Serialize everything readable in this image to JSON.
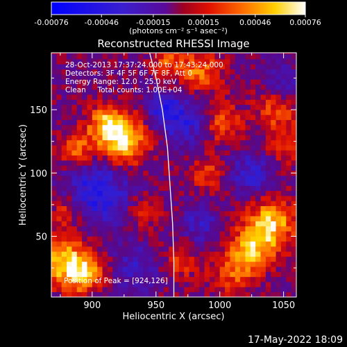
{
  "colorbar": {
    "tick_labels": [
      "-0.00076",
      "-0.00046",
      "-0.00015",
      "0.00015",
      "0.00046",
      "0.00076"
    ],
    "tick_values": [
      -0.00076,
      -0.00046,
      -0.00015,
      0.00015,
      0.00046,
      0.00076
    ],
    "range": [
      -0.00076,
      0.00076
    ],
    "unit_label": "(photons cm⁻² s⁻¹ asec⁻²)",
    "colormap": "blue-purple-red-yellow-white"
  },
  "annotations": [
    "28-Oct-2013 17:37:24.000 to 17:43:24.000",
    "Detectors: 3F 4F 5F 6F 7F 8F, Att 0",
    "Energy Range: 12.0 - 25.0 keV",
    "Clean     Total counts: 1.00E+04"
  ],
  "peak_label": "Position of Peak = [924,126]",
  "footer_date": "17-May-2022 18:09",
  "chart_data": {
    "type": "heatmap",
    "title": "Reconstructed RHESSI Image",
    "xlabel": "Heliocentric X (arcsec)",
    "ylabel": "Heliocentric Y (arcsec)",
    "xlim": [
      868,
      1060
    ],
    "ylim": [
      2,
      195
    ],
    "xticks": [
      900,
      950,
      1000,
      1050
    ],
    "yticks": [
      50,
      100,
      150
    ],
    "peak": {
      "x": 924,
      "y": 126
    },
    "limb_points": [
      [
        945,
        195
      ],
      [
        950,
        175
      ],
      [
        955,
        150
      ],
      [
        959,
        120
      ],
      [
        961,
        90
      ],
      [
        963,
        60
      ],
      [
        964,
        30
      ],
      [
        964,
        2
      ]
    ],
    "hotspots": [
      {
        "x": 924,
        "y": 126,
        "r": 14,
        "v": 0.00076
      },
      {
        "x": 910,
        "y": 140,
        "r": 10,
        "v": 0.00045
      },
      {
        "x": 888,
        "y": 118,
        "r": 10,
        "v": 0.0004
      },
      {
        "x": 878,
        "y": 30,
        "r": 14,
        "v": 0.00065
      },
      {
        "x": 895,
        "y": 20,
        "r": 10,
        "v": 0.0005
      },
      {
        "x": 1040,
        "y": 60,
        "r": 14,
        "v": 0.00062
      },
      {
        "x": 1025,
        "y": 40,
        "r": 12,
        "v": 0.0005
      },
      {
        "x": 1000,
        "y": 140,
        "r": 12,
        "v": 0.0004
      },
      {
        "x": 985,
        "y": 180,
        "r": 12,
        "v": 0.00045
      },
      {
        "x": 960,
        "y": 190,
        "r": 10,
        "v": 0.00035
      },
      {
        "x": 1045,
        "y": 150,
        "r": 12,
        "v": 0.00038
      },
      {
        "x": 1050,
        "y": 120,
        "r": 10,
        "v": 0.0003
      },
      {
        "x": 990,
        "y": 100,
        "r": 10,
        "v": 0.0003
      },
      {
        "x": 940,
        "y": 70,
        "r": 10,
        "v": 0.0003
      },
      {
        "x": 880,
        "y": 70,
        "r": 9,
        "v": 0.00035
      },
      {
        "x": 1010,
        "y": 20,
        "r": 12,
        "v": 0.00035
      },
      {
        "x": 970,
        "y": 30,
        "r": 10,
        "v": 0.0003
      }
    ],
    "coldspots": [
      {
        "x": 905,
        "y": 85,
        "r": 18,
        "v": -0.0005
      },
      {
        "x": 975,
        "y": 140,
        "r": 14,
        "v": -0.0004
      },
      {
        "x": 955,
        "y": 150,
        "r": 10,
        "v": -0.00035
      },
      {
        "x": 1025,
        "y": 100,
        "r": 12,
        "v": -0.00035
      },
      {
        "x": 1050,
        "y": 170,
        "r": 10,
        "v": -0.0003
      },
      {
        "x": 935,
        "y": 25,
        "r": 12,
        "v": -0.0003
      },
      {
        "x": 985,
        "y": 60,
        "r": 10,
        "v": -0.0003
      }
    ]
  }
}
